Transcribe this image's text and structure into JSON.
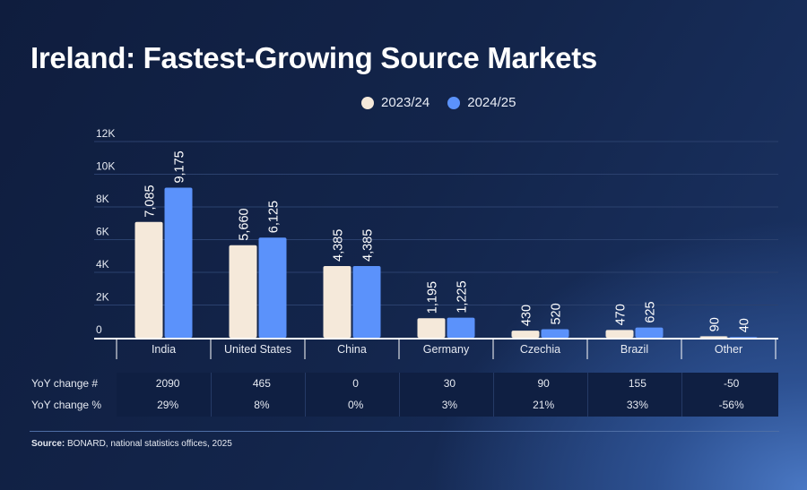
{
  "title": "Ireland: Fastest-Growing Source Markets",
  "chart_data": {
    "type": "bar",
    "title": "Ireland: Fastest-Growing Source Markets",
    "categories": [
      "India",
      "United States",
      "China",
      "Germany",
      "Czechia",
      "Brazil",
      "Other"
    ],
    "series": [
      {
        "name": "2023/24",
        "color": "#f5e9da",
        "values": [
          7085,
          5660,
          4385,
          1195,
          430,
          470,
          90
        ],
        "labels": [
          "7,085",
          "5,660",
          "4,385",
          "1,195",
          "430",
          "470",
          "90"
        ]
      },
      {
        "name": "2024/25",
        "color": "#5b92fb",
        "values": [
          9175,
          6125,
          4385,
          1225,
          520,
          625,
          40
        ],
        "labels": [
          "9,175",
          "6,125",
          "4,385",
          "1,225",
          "520",
          "625",
          "40"
        ]
      }
    ],
    "yticks": [
      "0",
      "2K",
      "4K",
      "6K",
      "8K",
      "10K",
      "12K"
    ],
    "ylim": [
      0,
      12000
    ],
    "grid": true,
    "legend": "top-center"
  },
  "table": {
    "rows": [
      {
        "label": "YoY change #",
        "values": [
          "2090",
          "465",
          "0",
          "30",
          "90",
          "155",
          "-50"
        ]
      },
      {
        "label": "YoY change %",
        "values": [
          "29%",
          "8%",
          "0%",
          "3%",
          "21%",
          "33%",
          "-56%"
        ]
      }
    ]
  },
  "source": {
    "label": "Source:",
    "text": " BONARD, national statistics offices, 2025"
  }
}
